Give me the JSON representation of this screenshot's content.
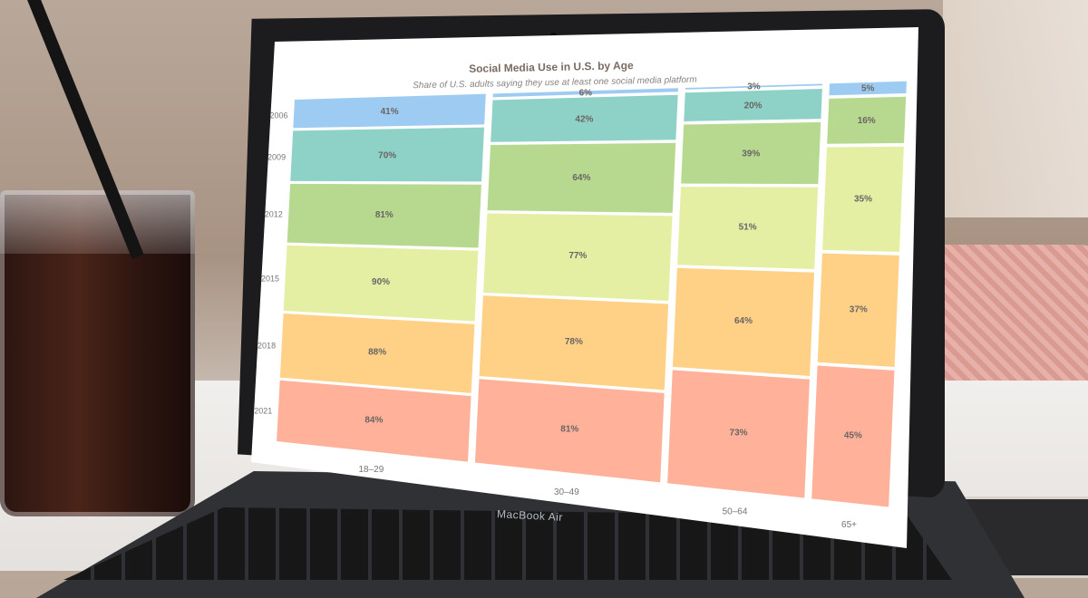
{
  "device": {
    "brand_label": "MacBook Air"
  },
  "chart_data": {
    "type": "bar",
    "title": "Social Media Use in U.S. by Age",
    "subtitle": "Share of U.S. adults saying they use at least one social media platform",
    "categories": [
      "18–29",
      "30–49",
      "50–64",
      "65+"
    ],
    "series": [
      {
        "name": "2006",
        "values": [
          41,
          6,
          3,
          5
        ],
        "color": "#9ecbf2"
      },
      {
        "name": "2009",
        "values": [
          70,
          42,
          20,
          null
        ],
        "color": "#8ed1c6"
      },
      {
        "name": "2012",
        "values": [
          81,
          64,
          39,
          16
        ],
        "color": "#b7d98f"
      },
      {
        "name": "2015",
        "values": [
          90,
          77,
          51,
          35
        ],
        "color": "#e4efa4"
      },
      {
        "name": "2018",
        "values": [
          88,
          78,
          64,
          37
        ],
        "color": "#ffd187"
      },
      {
        "name": "2021",
        "values": [
          84,
          81,
          73,
          45
        ],
        "color": "#ffb19a"
      }
    ],
    "value_suffix": "%"
  }
}
